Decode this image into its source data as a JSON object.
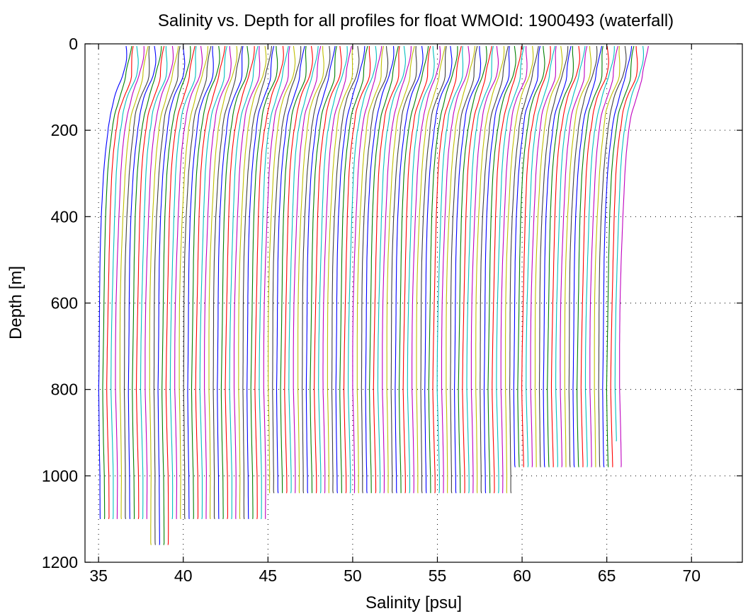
{
  "chart_data": {
    "type": "line",
    "title": "Salinity vs. Depth for all profiles for float WMOId: 1900493 (waterfall)",
    "xlabel": "Salinity [psu]",
    "ylabel": "Depth [m]",
    "xlim": [
      34.2,
      73.0
    ],
    "ylim": [
      0,
      1200
    ],
    "y_reversed": true,
    "grid": true,
    "legend": "none",
    "xticks": [
      "35",
      "40",
      "45",
      "50",
      "55",
      "60",
      "65",
      "70"
    ],
    "yticks": [
      "0",
      "200",
      "400",
      "600",
      "800",
      "1000",
      "1200"
    ],
    "xtick_values": [
      35,
      40,
      45,
      50,
      55,
      60,
      65,
      70
    ],
    "ytick_values": [
      0,
      200,
      400,
      600,
      800,
      1000,
      1200
    ],
    "series_colors": [
      "#0000ff",
      "#008000",
      "#ff0000",
      "#00bfbf",
      "#bf00bf",
      "#bfbf00",
      "#404040"
    ],
    "waterfall_offset_psu": 0.25,
    "profile_shape_depth": [
      5,
      40,
      80,
      120,
      160,
      200,
      250,
      300,
      400,
      500,
      600,
      700,
      800,
      900,
      1000
    ],
    "profile_shape_salinity": [
      36.6,
      36.55,
      36.4,
      36.0,
      35.7,
      35.55,
      35.4,
      35.3,
      35.18,
      35.1,
      35.05,
      35.02,
      35.0,
      35.05,
      35.1
    ],
    "profile_groups": [
      {
        "count": 12,
        "max_depth": 1100
      },
      {
        "count": 5,
        "max_depth": 1160
      },
      {
        "count": 23,
        "max_depth": 1100
      },
      {
        "count": 57,
        "max_depth": 1040
      },
      {
        "count": 1,
        "max_depth": 1040
      },
      {
        "count": 24,
        "max_depth": 980
      },
      {
        "count": 1,
        "max_depth": 920
      },
      {
        "count": 1,
        "max_depth": 980
      }
    ]
  }
}
